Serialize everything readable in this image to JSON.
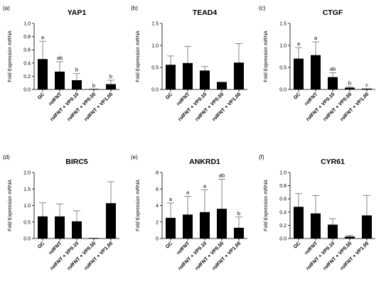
{
  "chart_data": [
    {
      "type": "bar",
      "panel": "(a)",
      "title": "YAP1",
      "ylabel": "Fold Expression mRNA",
      "ylim": [
        0,
        1.0
      ],
      "yticks": [
        "0.0",
        "0.2",
        "0.4",
        "0.6",
        "0.8",
        "1.0"
      ],
      "categories": [
        "GC",
        "rolFNT",
        "rolFNT + VP0.10",
        "rolFNT + VP0.50",
        "rolFNT + VP1.00"
      ],
      "values": [
        0.46,
        0.27,
        0.14,
        0.0,
        0.08
      ],
      "errors": [
        0.27,
        0.15,
        0.1,
        0.0,
        0.06
      ],
      "significance": [
        "a",
        "ab",
        "b",
        "b",
        "b"
      ]
    },
    {
      "type": "bar",
      "panel": "(b)",
      "title": "TEAD4",
      "ylabel": "Fold Expression mRNA",
      "ylim": [
        0,
        1.5
      ],
      "yticks": [
        "0.0",
        "0.5",
        "1.0",
        "1.5"
      ],
      "categories": [
        "GC",
        "rolFNT",
        "rolFNT + VP0.10",
        "rolFNT + VP0.50",
        "rolFNT + VP1.00"
      ],
      "values": [
        0.56,
        0.6,
        0.43,
        0.17,
        0.61
      ],
      "errors": [
        0.2,
        0.38,
        0.09,
        0.0,
        0.43
      ],
      "significance": [
        "",
        "",
        "",
        "",
        ""
      ]
    },
    {
      "type": "bar",
      "panel": "(c)",
      "title": "CTGF",
      "ylabel": "Fold Expression mRNA",
      "ylim": [
        0,
        1.5
      ],
      "yticks": [
        "0.0",
        "0.5",
        "1.0",
        "1.5"
      ],
      "categories": [
        "GC",
        "rolFNT",
        "rolFNT + VP0.10",
        "rolFNT + VP0.50",
        "rolFNT + VP1.00"
      ],
      "values": [
        0.7,
        0.78,
        0.28,
        0.04,
        0.02
      ],
      "errors": [
        0.25,
        0.3,
        0.1,
        0.02,
        0.0
      ],
      "significance": [
        "a",
        "a",
        "ab",
        "b",
        "c"
      ]
    },
    {
      "type": "bar",
      "panel": "(d)",
      "title": "BIRC5",
      "ylabel": "Fold Expression mRNA",
      "ylim": [
        0,
        2.0
      ],
      "yticks": [
        "0.0",
        "0.5",
        "1.0",
        "1.5",
        "2.0"
      ],
      "categories": [
        "GC",
        "rolFNT",
        "rolFNT + VP0.10",
        "rolFNT + VP0.50",
        "rolFNT + VP1.00"
      ],
      "values": [
        0.67,
        0.67,
        0.52,
        0.01,
        1.07
      ],
      "errors": [
        0.41,
        0.38,
        0.32,
        0.0,
        0.65
      ],
      "significance": [
        "",
        "",
        "",
        "",
        ""
      ]
    },
    {
      "type": "bar",
      "panel": "(e)",
      "title": "ANKRD1",
      "ylabel": "Fold Expression mRNA",
      "ylim": [
        0,
        8
      ],
      "yticks": [
        "0",
        "2",
        "4",
        "6",
        "8"
      ],
      "categories": [
        "GC",
        "rolFNT",
        "rolFNT + VP0.10",
        "rolFNT + VP0.50",
        "rolFNT + VP1.00"
      ],
      "values": [
        2.5,
        2.9,
        3.2,
        3.6,
        1.3
      ],
      "errors": [
        1.8,
        2.2,
        2.7,
        3.6,
        1.3
      ],
      "significance": [
        "a",
        "a",
        "a",
        "ab",
        "b"
      ]
    },
    {
      "type": "bar",
      "panel": "(f)",
      "title": "CYR61",
      "ylabel": "Fold Expression mRNA",
      "ylim": [
        0,
        1.0
      ],
      "yticks": [
        "0.0",
        "0.2",
        "0.4",
        "0.6",
        "0.8",
        "1.0"
      ],
      "categories": [
        "GC",
        "rolFNT",
        "rolFNT + VP0.10",
        "rolFNT + VP0.50",
        "rolFNT + VP1.00"
      ],
      "values": [
        0.48,
        0.38,
        0.21,
        0.03,
        0.35
      ],
      "errors": [
        0.2,
        0.27,
        0.09,
        0.02,
        0.3
      ],
      "significance": [
        "",
        "",
        "",
        "",
        ""
      ]
    }
  ]
}
